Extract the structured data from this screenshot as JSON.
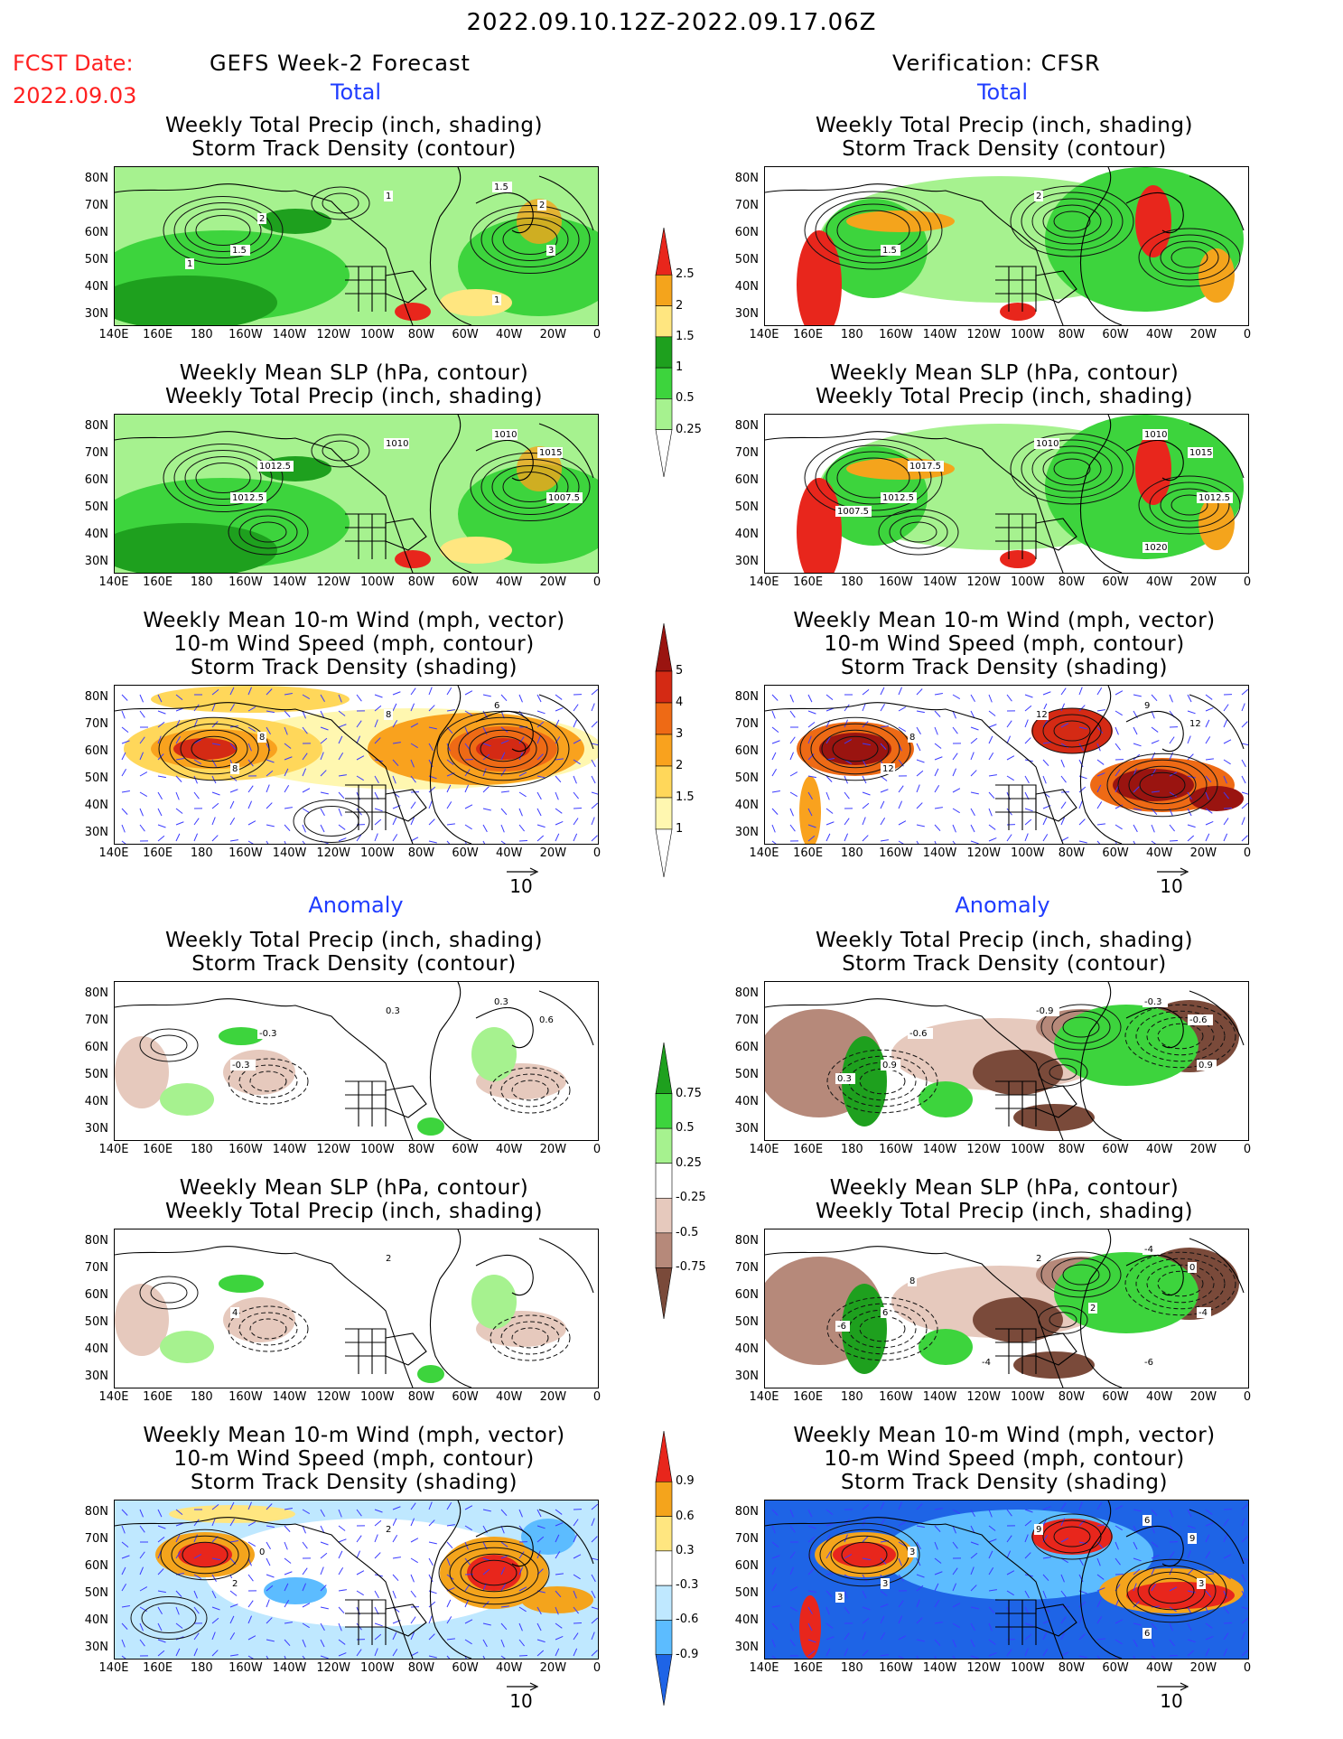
{
  "header": {
    "date_range": "2022.09.10.12Z-2022.09.17.06Z",
    "fcst_label": "FCST Date:",
    "fcst_date": "2022.09.03",
    "left_title": "GEFS Week-2 Forecast",
    "right_title": "Verification: CFSR",
    "total_label": "Total",
    "anomaly_label": "Anomaly"
  },
  "panel_titles": {
    "precip_storm": [
      "Weekly Total Precip (inch, shading)",
      "Storm Track Density (contour)"
    ],
    "slp_precip": [
      "Weekly Mean SLP (hPa, contour)",
      "Weekly Total Precip (inch, shading)"
    ],
    "wind_storm": [
      "Weekly Mean 10-m Wind (mph, vector)",
      "10-m Wind Speed (mph, contour)",
      "Storm Track Density (shading)"
    ]
  },
  "axes": {
    "lat": [
      "80N",
      "70N",
      "60N",
      "50N",
      "40N",
      "30N"
    ],
    "lon": [
      "140E",
      "160E",
      "180",
      "160W",
      "140W",
      "120W",
      "100W",
      "80W",
      "60W",
      "40W",
      "20W",
      "0"
    ]
  },
  "vector_reference": "10",
  "colorbars": {
    "precip_total": [
      "2.5",
      "2",
      "1.5",
      "1",
      "0.5",
      "0.25"
    ],
    "storm_total": [
      "5",
      "4",
      "3",
      "2",
      "1.5",
      "1"
    ],
    "precip_anom": [
      "0.75",
      "0.5",
      "0.25",
      "-0.25",
      "-0.5",
      "-0.75"
    ],
    "storm_anom": [
      "0.9",
      "0.6",
      "0.3",
      "-0.3",
      "-0.6",
      "-0.9"
    ]
  },
  "colors": {
    "precip_light": "#a6f28f",
    "precip_mid": "#3dd43d",
    "precip_dark": "#1ea01e",
    "precip_yellow": "#ffe680",
    "precip_orange": "#f4a41c",
    "precip_red": "#e8261c",
    "storm_1": "#fff7b0",
    "storm_2": "#ffd75a",
    "storm_3": "#f9a21e",
    "storm_4": "#ee6a15",
    "storm_5": "#d42a14",
    "storm_6": "#9a1410",
    "anom_brown_light": "#e6c9bd",
    "anom_brown_mid": "#b6897a",
    "anom_brown_dark": "#7a4a3a",
    "blue_light": "#bfe8ff",
    "blue_mid": "#5cbcff",
    "blue_dark": "#1e64e6",
    "contour": "#111111",
    "vector": "#3b3bff",
    "state_line": "#000000"
  },
  "contour_labels": {
    "gefs_precip_total": [
      "1.5",
      "1",
      "2",
      "1.5",
      "2",
      "3",
      "1",
      "1"
    ],
    "cfsr_precip_total": [
      "1.5",
      "2"
    ],
    "gefs_slp_total": [
      "1012.5",
      "1010",
      "1012.5",
      "1010",
      "1015",
      "1007.5"
    ],
    "cfsr_slp_total": [
      "1012.5",
      "1010",
      "1017.5",
      "1010",
      "1015",
      "1012.5",
      "1007.5",
      "1020"
    ],
    "gefs_wind_total": [
      "8",
      "8",
      "8",
      "6"
    ],
    "cfsr_wind_total": [
      "12",
      "12",
      "8",
      "9",
      "12"
    ],
    "gefs_precip_anom": [
      "-0.3",
      "0.3",
      "-0.3",
      "0.3",
      "0.6"
    ],
    "cfsr_precip_anom": [
      "0.9",
      "-0.9",
      "-0.6",
      "-0.3",
      "-0.6",
      "0.9",
      "0.3"
    ],
    "gefs_slp_anom": [
      "4",
      "2"
    ],
    "cfsr_slp_anom": [
      "6",
      "2",
      "8",
      "-4",
      "0",
      "-4",
      "-6",
      "-6",
      "-4",
      "2"
    ],
    "gefs_wind_anom": [
      "2",
      "2",
      "0"
    ],
    "cfsr_wind_anom": [
      "3",
      "9",
      "3",
      "6",
      "9",
      "3",
      "3",
      "6"
    ]
  }
}
